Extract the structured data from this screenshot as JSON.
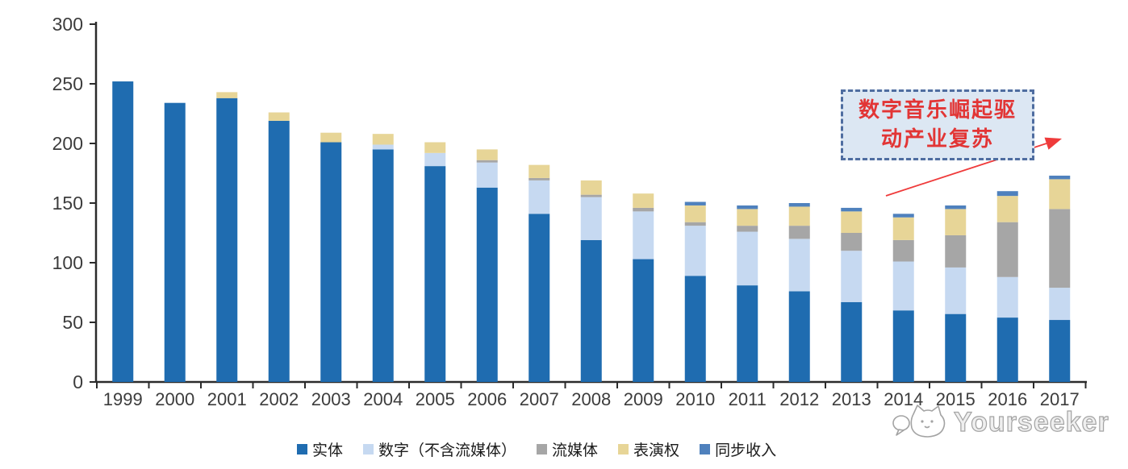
{
  "chart_data": {
    "type": "bar",
    "stacked": true,
    "title": "",
    "categories": [
      "1999",
      "2000",
      "2001",
      "2002",
      "2003",
      "2004",
      "2005",
      "2006",
      "2007",
      "2008",
      "2009",
      "2010",
      "2011",
      "2012",
      "2013",
      "2014",
      "2015",
      "2016",
      "2017"
    ],
    "series": [
      {
        "name": "实体",
        "color": "#1f6cb0",
        "values": [
          252,
          234,
          238,
          219,
          201,
          195,
          181,
          163,
          141,
          119,
          103,
          89,
          81,
          76,
          67,
          60,
          57,
          54,
          52
        ]
      },
      {
        "name": "数字（不含流媒体）",
        "color": "#c6d9f1",
        "values": [
          0,
          0,
          0,
          0,
          0,
          4,
          11,
          21,
          28,
          36,
          40,
          42,
          45,
          44,
          43,
          41,
          39,
          34,
          27
        ]
      },
      {
        "name": "流媒体",
        "color": "#a6a6a6",
        "values": [
          0,
          0,
          0,
          0,
          0,
          0,
          0,
          2,
          2,
          2,
          3,
          3,
          5,
          11,
          15,
          18,
          27,
          46,
          66
        ]
      },
      {
        "name": "表演权",
        "color": "#e7d597",
        "values": [
          0,
          0,
          5,
          7,
          8,
          9,
          9,
          9,
          11,
          12,
          12,
          14,
          14,
          16,
          18,
          19,
          22,
          22,
          25
        ]
      },
      {
        "name": "同步收入",
        "color": "#4f81bd",
        "values": [
          0,
          0,
          0,
          0,
          0,
          0,
          0,
          0,
          0,
          0,
          0,
          3,
          3,
          3,
          3,
          3,
          3,
          4,
          3
        ]
      }
    ],
    "ylim": [
      0,
      300
    ],
    "yticks": [
      0,
      50,
      100,
      150,
      200,
      250,
      300
    ],
    "xlabel": "",
    "ylabel": "",
    "grid": false,
    "legend_position": "bottom"
  },
  "annotation": {
    "line1": "数字音乐崛起驱",
    "line2": "动产业复苏",
    "text_color": "#e23535",
    "box_fill": "#dce7f3",
    "border_color": "#4f6da0",
    "arrow_color": "#ef3b3b"
  },
  "watermark": {
    "text": "Yourseeker"
  }
}
